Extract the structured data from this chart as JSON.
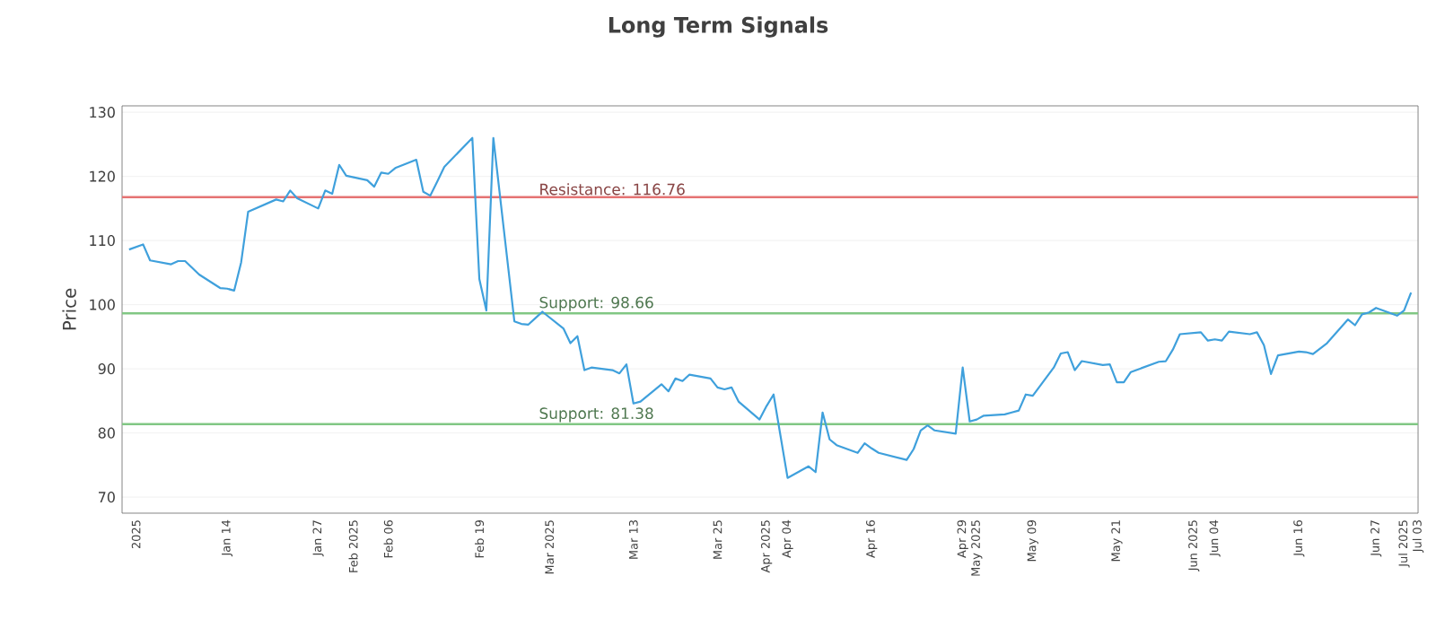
{
  "chart_data": {
    "type": "line",
    "title": "Long Term Signals",
    "ylabel": "Price",
    "x": [
      "2024-12-31",
      "2025-01-02",
      "2025-01-03",
      "2025-01-06",
      "2025-01-07",
      "2025-01-08",
      "2025-01-10",
      "2025-01-13",
      "2025-01-14",
      "2025-01-15",
      "2025-01-16",
      "2025-01-17",
      "2025-01-21",
      "2025-01-22",
      "2025-01-23",
      "2025-01-24",
      "2025-01-27",
      "2025-01-28",
      "2025-01-29",
      "2025-01-30",
      "2025-01-31",
      "2025-02-03",
      "2025-02-04",
      "2025-02-05",
      "2025-02-06",
      "2025-02-07",
      "2025-02-10",
      "2025-02-11",
      "2025-02-12",
      "2025-02-13",
      "2025-02-14",
      "2025-02-18",
      "2025-02-19",
      "2025-02-20",
      "2025-02-21",
      "2025-02-24",
      "2025-02-25",
      "2025-02-26",
      "2025-02-27",
      "2025-02-28",
      "2025-03-03",
      "2025-03-04",
      "2025-03-05",
      "2025-03-06",
      "2025-03-07",
      "2025-03-10",
      "2025-03-11",
      "2025-03-12",
      "2025-03-13",
      "2025-03-14",
      "2025-03-17",
      "2025-03-18",
      "2025-03-19",
      "2025-03-20",
      "2025-03-21",
      "2025-03-24",
      "2025-03-25",
      "2025-03-26",
      "2025-03-27",
      "2025-03-28",
      "2025-03-31",
      "2025-04-01",
      "2025-04-02",
      "2025-04-03",
      "2025-04-04",
      "2025-04-07",
      "2025-04-08",
      "2025-04-09",
      "2025-04-10",
      "2025-04-11",
      "2025-04-14",
      "2025-04-15",
      "2025-04-16",
      "2025-04-17",
      "2025-04-21",
      "2025-04-22",
      "2025-04-23",
      "2025-04-24",
      "2025-04-25",
      "2025-04-28",
      "2025-04-29",
      "2025-04-30",
      "2025-05-01",
      "2025-05-02",
      "2025-05-05",
      "2025-05-06",
      "2025-05-07",
      "2025-05-08",
      "2025-05-09",
      "2025-05-12",
      "2025-05-13",
      "2025-05-14",
      "2025-05-15",
      "2025-05-16",
      "2025-05-19",
      "2025-05-20",
      "2025-05-21",
      "2025-05-22",
      "2025-05-23",
      "2025-05-27",
      "2025-05-28",
      "2025-05-29",
      "2025-05-30",
      "2025-06-02",
      "2025-06-03",
      "2025-06-04",
      "2025-06-05",
      "2025-06-06",
      "2025-06-09",
      "2025-06-10",
      "2025-06-11",
      "2025-06-12",
      "2025-06-13",
      "2025-06-16",
      "2025-06-17",
      "2025-06-18",
      "2025-06-20",
      "2025-06-23",
      "2025-06-24",
      "2025-06-25",
      "2025-06-26",
      "2025-06-27",
      "2025-06-30",
      "2025-07-01",
      "2025-07-02"
    ],
    "series": [
      {
        "color": "#3fa0dc",
        "values": [
          108.6,
          109.4,
          106.9,
          106.3,
          106.8,
          106.8,
          104.7,
          102.6,
          102.5,
          102.2,
          106.6,
          114.5,
          116.4,
          116.1,
          117.8,
          116.6,
          115.0,
          117.8,
          117.3,
          121.8,
          120.1,
          119.4,
          118.4,
          120.6,
          120.4,
          121.3,
          122.6,
          117.6,
          117.0,
          119.2,
          121.5,
          126.0,
          104.0,
          99.1,
          126.0,
          97.4,
          97.0,
          96.9,
          97.9,
          98.9,
          96.3,
          94.0,
          95.1,
          89.8,
          90.2,
          89.8,
          89.3,
          90.7,
          84.6,
          84.9,
          87.6,
          86.5,
          88.5,
          88.1,
          89.1,
          88.5,
          87.1,
          86.8,
          87.1,
          84.9,
          82.1,
          84.2,
          86.0,
          79.5,
          73.0,
          74.8,
          73.9,
          83.2,
          79.0,
          78.1,
          76.9,
          78.4,
          77.6,
          76.9,
          75.8,
          77.5,
          80.4,
          81.2,
          80.4,
          79.9,
          90.2,
          81.8,
          82.1,
          82.7,
          82.9,
          83.2,
          83.5,
          86.0,
          85.8,
          90.2,
          92.4,
          92.6,
          89.8,
          91.2,
          90.6,
          90.7,
          87.9,
          87.9,
          89.5,
          91.1,
          91.2,
          93.0,
          95.4,
          95.7,
          94.4,
          94.6,
          94.4,
          95.8,
          95.4,
          95.7,
          93.7,
          89.2,
          92.1,
          92.7,
          92.6,
          92.3,
          94.0,
          97.7,
          96.8,
          98.5,
          98.8,
          99.5,
          98.3,
          99.1,
          101.9
        ]
      }
    ],
    "xlim": [
      "2024-12-30",
      "2025-07-03"
    ],
    "xticks": [
      {
        "value": "2025-01-01",
        "label": "2025"
      },
      {
        "value": "2025-01-14",
        "label": "Jan 14"
      },
      {
        "value": "2025-01-27",
        "label": "Jan 27"
      },
      {
        "value": "2025-02-01",
        "label": "Feb 2025"
      },
      {
        "value": "2025-02-06",
        "label": "Feb 06"
      },
      {
        "value": "2025-02-19",
        "label": "Feb 19"
      },
      {
        "value": "2025-03-01",
        "label": "Mar 2025"
      },
      {
        "value": "2025-03-13",
        "label": "Mar 13"
      },
      {
        "value": "2025-03-25",
        "label": "Mar 25"
      },
      {
        "value": "2025-04-01",
        "label": "Apr 2025"
      },
      {
        "value": "2025-04-04",
        "label": "Apr 04"
      },
      {
        "value": "2025-04-16",
        "label": "Apr 16"
      },
      {
        "value": "2025-04-29",
        "label": "Apr 29"
      },
      {
        "value": "2025-05-01",
        "label": "May 2025"
      },
      {
        "value": "2025-05-09",
        "label": "May 09"
      },
      {
        "value": "2025-05-21",
        "label": "May 21"
      },
      {
        "value": "2025-06-01",
        "label": "Jun 2025"
      },
      {
        "value": "2025-06-04",
        "label": "Jun 04"
      },
      {
        "value": "2025-06-16",
        "label": "Jun 16"
      },
      {
        "value": "2025-06-27",
        "label": "Jun 27"
      },
      {
        "value": "2025-07-01",
        "label": "Jul 2025"
      },
      {
        "value": "2025-07-03",
        "label": "Jul 03"
      }
    ],
    "ylim": [
      67.5,
      131
    ],
    "yticks": [
      70,
      80,
      90,
      100,
      110,
      120,
      130
    ],
    "grid": "y",
    "marker": "none",
    "line_style": "solid",
    "ref_lines": [
      {
        "axis": "y",
        "value": 116.76,
        "label": "Resistance: 116.76",
        "color": "#e57373"
      },
      {
        "axis": "y",
        "value": 98.66,
        "label": "Support: 98.66",
        "color": "#81c784"
      },
      {
        "axis": "y",
        "value": 81.38,
        "label": "Support: 81.38",
        "color": "#81c784"
      }
    ]
  }
}
